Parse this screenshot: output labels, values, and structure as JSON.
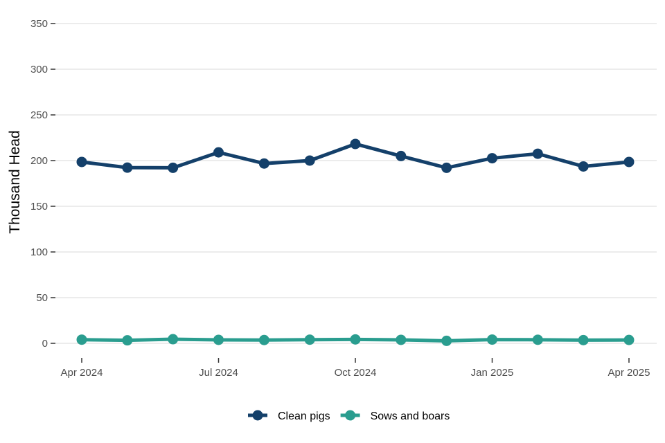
{
  "chart_data": {
    "type": "line",
    "ylabel": "Thousand Head",
    "xlabel": "",
    "ylim": [
      0,
      350
    ],
    "yticks": [
      0,
      50,
      100,
      150,
      200,
      250,
      300,
      350
    ],
    "x": [
      "2024-04",
      "2024-05",
      "2024-06",
      "2024-07",
      "2024-08",
      "2024-09",
      "2024-10",
      "2024-11",
      "2024-12",
      "2025-01",
      "2025-02",
      "2025-03",
      "2025-04"
    ],
    "xticks": [
      {
        "label": "Apr 2024",
        "x": "2024-04"
      },
      {
        "label": "Jul 2024",
        "x": "2024-07"
      },
      {
        "label": "Oct 2024",
        "x": "2024-10"
      },
      {
        "label": "Jan 2025",
        "x": "2025-01"
      },
      {
        "label": "Apr 2025",
        "x": "2025-04"
      }
    ],
    "grid": true,
    "legend_position": "bottom",
    "series": [
      {
        "name": "Clean pigs",
        "color": "#14406a",
        "values": [
          198.5,
          192.3,
          192.1,
          209.0,
          196.8,
          200.0,
          218.2,
          205.0,
          192.1,
          202.6,
          207.5,
          193.6,
          198.5
        ]
      },
      {
        "name": "Sows and boars",
        "color": "#2a9d8f",
        "values": [
          4.0,
          3.3,
          4.5,
          3.8,
          3.6,
          4.0,
          4.3,
          3.8,
          2.7,
          4.1,
          3.9,
          3.5,
          3.7
        ]
      }
    ]
  }
}
